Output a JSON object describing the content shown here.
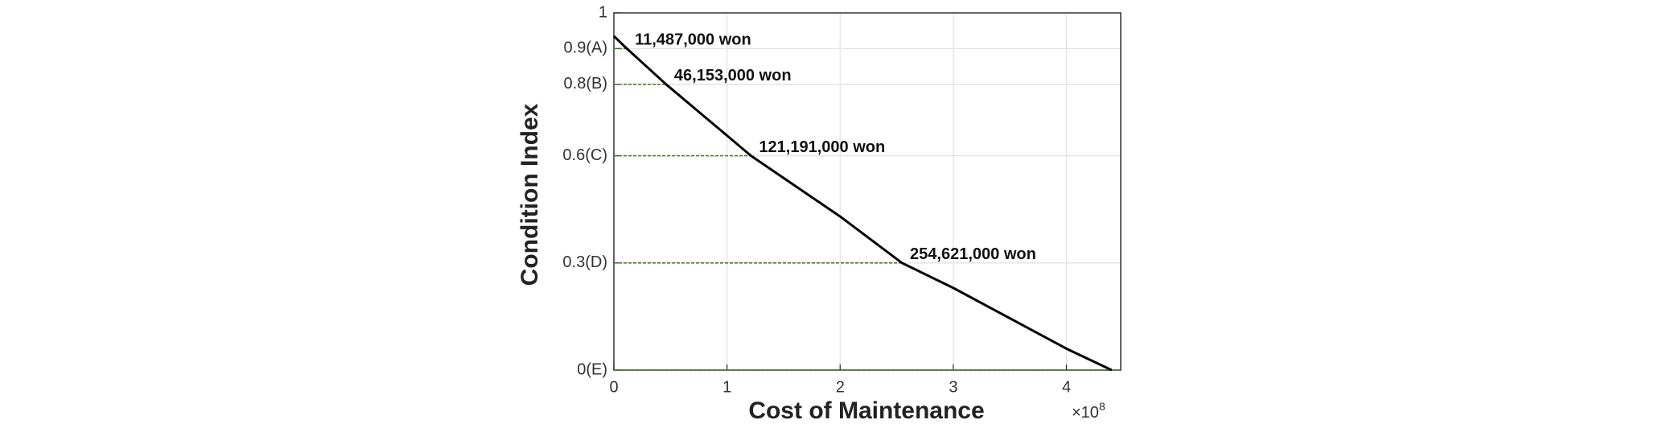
{
  "chart_data": {
    "type": "line",
    "xlabel": "Cost of Maintenance",
    "ylabel": "Condition Index",
    "x_scale_label": {
      "base": "×10",
      "exponent": "8"
    },
    "xlim": [
      0,
      4.48
    ],
    "ylim": [
      0,
      1
    ],
    "xticks": [
      0,
      1,
      2,
      3,
      4
    ],
    "yticks": [
      {
        "value": 0,
        "label": "0(E)"
      },
      {
        "value": 0.3,
        "label": "0.3(D)"
      },
      {
        "value": 0.6,
        "label": "0.6(C)"
      },
      {
        "value": 0.8,
        "label": "0.8(B)"
      },
      {
        "value": 0.9,
        "label": "0.9(A)"
      },
      1
    ],
    "grid": true,
    "x": [
      0,
      0.11487,
      0.46153,
      1.21191,
      2,
      2.54621,
      3,
      4,
      4.4
    ],
    "series": [
      {
        "color": "#000000",
        "values": [
          0.935,
          0.9,
          0.8,
          0.6,
          0.43,
          0.3,
          0.23,
          0.06,
          0
        ]
      }
    ],
    "annotations": [
      {
        "label": "11,487,000 won",
        "x": 0.11487,
        "y": 0.9
      },
      {
        "label": "46,153,000 won",
        "x": 0.46153,
        "y": 0.8
      },
      {
        "label": "121,191,000 won",
        "x": 1.21191,
        "y": 0.6
      },
      {
        "label": "254,621,000 won",
        "x": 2.54621,
        "y": 0.3
      }
    ],
    "reference_line_color": "#4d7d2e"
  }
}
